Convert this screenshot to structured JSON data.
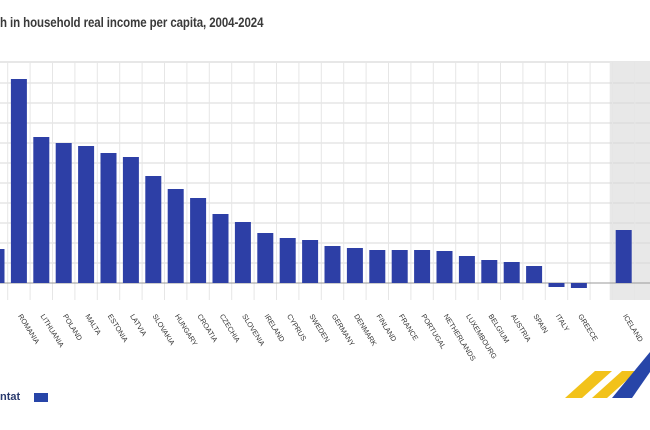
{
  "chart_data": {
    "type": "bar",
    "title": "h in household real income per capita, 2004-2024",
    "xlabel": "",
    "ylabel": "",
    "categories": [
      "",
      "ROMANIA",
      "LITHUANIA",
      "POLAND",
      "MALTA",
      "ESTONIA",
      "LATVIA",
      "SLOVAKIA",
      "HUNGARY",
      "CROATIA",
      "CZECHIA",
      "SLOVENIA",
      "IRELAND",
      "CYPRUS",
      "SWEDEN",
      "GERMANY",
      "DENMARK",
      "FINLAND",
      "FRANCE",
      "PORTUGAL",
      "NETHERLANDS",
      "LUXEMBOURG",
      "BELGIUM",
      "AUSTRIA",
      "SPAIN",
      "ITALY",
      "GREECE",
      "",
      "ICELAND"
    ],
    "values": [
      34,
      204,
      146,
      140,
      137,
      130,
      126,
      107,
      94,
      85,
      69,
      61,
      50,
      45,
      43,
      37,
      35,
      33,
      33,
      33,
      32,
      27,
      23,
      21,
      17,
      -4,
      -5,
      null,
      53
    ],
    "ylim": [
      -20,
      215
    ],
    "grid": true,
    "bar_color": "#2d3fa6",
    "shaded_color": "#e8e8e8",
    "grid_color": "#d9d9d9"
  },
  "footer": {
    "source_text": "ntat"
  }
}
